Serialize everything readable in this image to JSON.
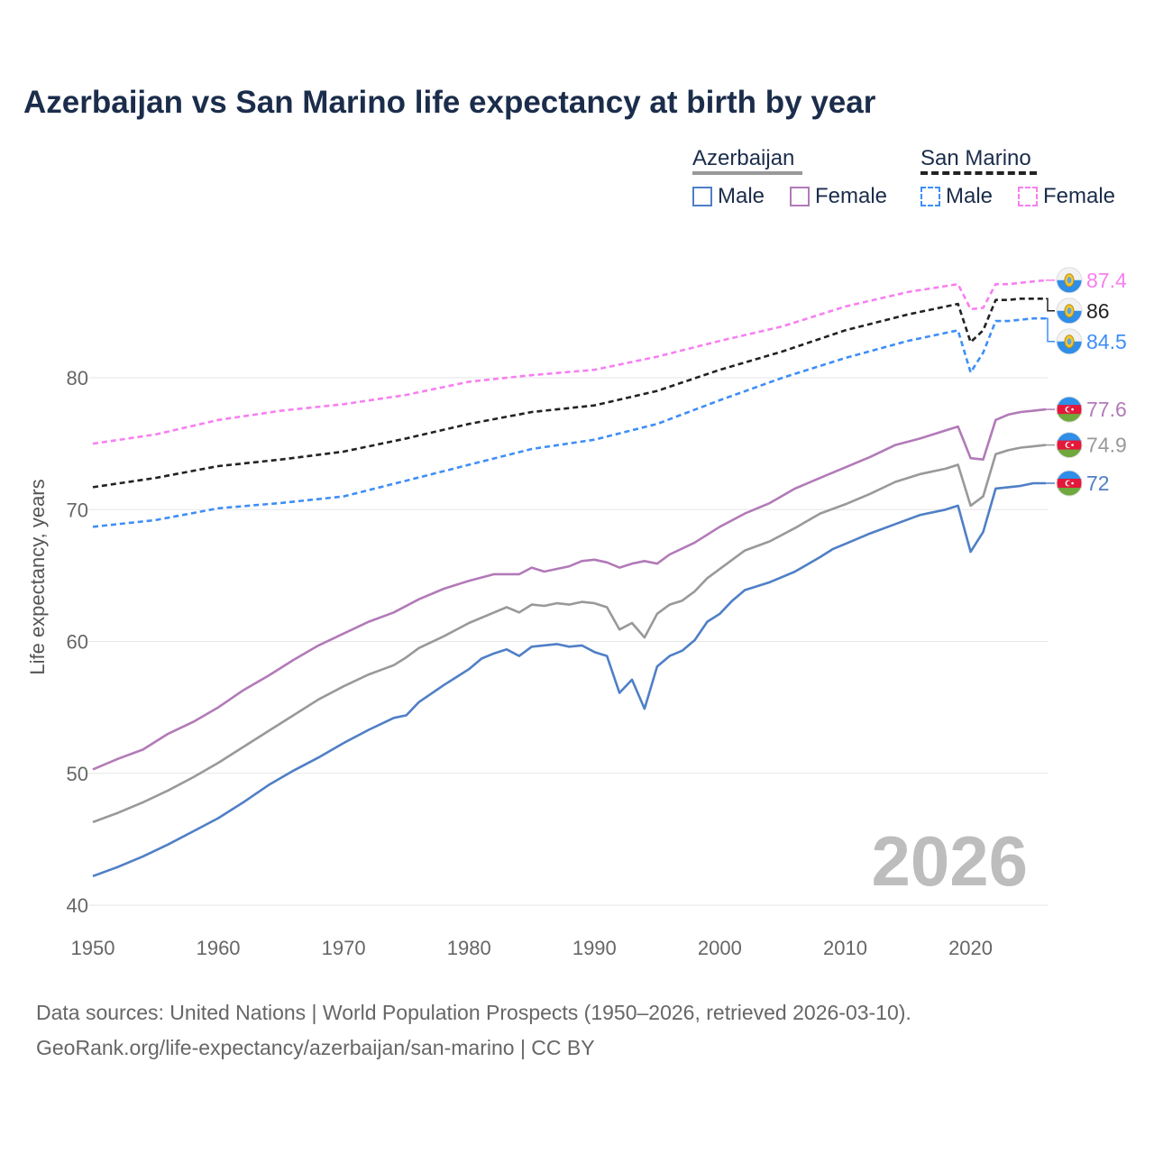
{
  "chart_data": {
    "type": "line",
    "title": "Azerbaijan vs San Marino life expectancy at birth by year",
    "xlabel": "",
    "ylabel": "Life expectancy, years",
    "xlim": [
      1950,
      2026
    ],
    "ylim": [
      40,
      90
    ],
    "x_ticks": [
      "1950",
      "1960",
      "1970",
      "1980",
      "1990",
      "2000",
      "2010",
      "2020"
    ],
    "y_ticks": [
      "40",
      "50",
      "60",
      "70",
      "80"
    ],
    "year_label": "2026",
    "legend": {
      "groups": [
        {
          "name": "Azerbaijan",
          "items": [
            "Male",
            "Female"
          ]
        },
        {
          "name": "San Marino",
          "items": [
            "Male",
            "Female"
          ]
        }
      ]
    },
    "series": [
      {
        "name": "San Marino Female",
        "country": "San Marino",
        "sex": "Female",
        "color": "#f77ff0",
        "dashed": true,
        "end_label": "87.4",
        "points": [
          [
            1950,
            75.0
          ],
          [
            1955,
            75.7
          ],
          [
            1960,
            76.8
          ],
          [
            1965,
            77.5
          ],
          [
            1970,
            78.0
          ],
          [
            1975,
            78.7
          ],
          [
            1980,
            79.7
          ],
          [
            1985,
            80.2
          ],
          [
            1990,
            80.6
          ],
          [
            1995,
            81.6
          ],
          [
            2000,
            82.8
          ],
          [
            2005,
            83.9
          ],
          [
            2010,
            85.4
          ],
          [
            2015,
            86.5
          ],
          [
            2019,
            87.1
          ],
          [
            2020,
            85.2
          ],
          [
            2021,
            85.3
          ],
          [
            2022,
            87.1
          ],
          [
            2023,
            87.1
          ],
          [
            2024,
            87.2
          ],
          [
            2025,
            87.3
          ],
          [
            2026,
            87.4
          ]
        ]
      },
      {
        "name": "San Marino Both",
        "country": "San Marino",
        "sex": "Both",
        "color": "#222222",
        "dashed": true,
        "end_label": "86",
        "points": [
          [
            1950,
            71.7
          ],
          [
            1955,
            72.4
          ],
          [
            1960,
            73.3
          ],
          [
            1965,
            73.8
          ],
          [
            1970,
            74.4
          ],
          [
            1975,
            75.4
          ],
          [
            1980,
            76.5
          ],
          [
            1985,
            77.4
          ],
          [
            1990,
            77.9
          ],
          [
            1995,
            79.0
          ],
          [
            2000,
            80.6
          ],
          [
            2005,
            82.0
          ],
          [
            2010,
            83.6
          ],
          [
            2015,
            84.8
          ],
          [
            2019,
            85.6
          ],
          [
            2020,
            82.7
          ],
          [
            2021,
            83.6
          ],
          [
            2022,
            85.9
          ],
          [
            2023,
            85.9
          ],
          [
            2024,
            86.0
          ],
          [
            2025,
            86.0
          ],
          [
            2026,
            86.0
          ]
        ]
      },
      {
        "name": "San Marino Male",
        "country": "San Marino",
        "sex": "Male",
        "color": "#3e8ef7",
        "dashed": true,
        "end_label": "84.5",
        "points": [
          [
            1950,
            68.7
          ],
          [
            1955,
            69.2
          ],
          [
            1960,
            70.1
          ],
          [
            1965,
            70.5
          ],
          [
            1970,
            71.0
          ],
          [
            1975,
            72.2
          ],
          [
            1980,
            73.4
          ],
          [
            1985,
            74.6
          ],
          [
            1990,
            75.3
          ],
          [
            1995,
            76.5
          ],
          [
            2000,
            78.3
          ],
          [
            2005,
            80.0
          ],
          [
            2010,
            81.5
          ],
          [
            2015,
            82.8
          ],
          [
            2019,
            83.6
          ],
          [
            2020,
            80.4
          ],
          [
            2021,
            81.9
          ],
          [
            2022,
            84.3
          ],
          [
            2023,
            84.3
          ],
          [
            2024,
            84.4
          ],
          [
            2025,
            84.5
          ],
          [
            2026,
            84.5
          ]
        ]
      },
      {
        "name": "Azerbaijan Female",
        "country": "Azerbaijan",
        "sex": "Female",
        "color": "#b27ab8",
        "dashed": false,
        "end_label": "77.6",
        "points": [
          [
            1950,
            50.3
          ],
          [
            1952,
            51.1
          ],
          [
            1954,
            51.8
          ],
          [
            1956,
            53.0
          ],
          [
            1958,
            53.9
          ],
          [
            1960,
            55.0
          ],
          [
            1962,
            56.3
          ],
          [
            1964,
            57.4
          ],
          [
            1966,
            58.6
          ],
          [
            1968,
            59.7
          ],
          [
            1970,
            60.6
          ],
          [
            1972,
            61.5
          ],
          [
            1974,
            62.2
          ],
          [
            1976,
            63.2
          ],
          [
            1978,
            64.0
          ],
          [
            1980,
            64.6
          ],
          [
            1982,
            65.1
          ],
          [
            1984,
            65.1
          ],
          [
            1985,
            65.6
          ],
          [
            1986,
            65.3
          ],
          [
            1988,
            65.7
          ],
          [
            1989,
            66.1
          ],
          [
            1990,
            66.2
          ],
          [
            1991,
            66.0
          ],
          [
            1992,
            65.6
          ],
          [
            1993,
            65.9
          ],
          [
            1994,
            66.1
          ],
          [
            1995,
            65.9
          ],
          [
            1996,
            66.6
          ],
          [
            1998,
            67.5
          ],
          [
            2000,
            68.7
          ],
          [
            2002,
            69.7
          ],
          [
            2004,
            70.5
          ],
          [
            2006,
            71.6
          ],
          [
            2008,
            72.4
          ],
          [
            2010,
            73.2
          ],
          [
            2012,
            74.0
          ],
          [
            2014,
            74.9
          ],
          [
            2016,
            75.4
          ],
          [
            2018,
            76.0
          ],
          [
            2019,
            76.3
          ],
          [
            2020,
            73.9
          ],
          [
            2021,
            73.8
          ],
          [
            2022,
            76.8
          ],
          [
            2023,
            77.2
          ],
          [
            2024,
            77.4
          ],
          [
            2025,
            77.5
          ],
          [
            2026,
            77.6
          ]
        ]
      },
      {
        "name": "Azerbaijan Both",
        "country": "Azerbaijan",
        "sex": "Both",
        "color": "#999999",
        "dashed": false,
        "end_label": "74.9",
        "points": [
          [
            1950,
            46.3
          ],
          [
            1952,
            47.0
          ],
          [
            1954,
            47.8
          ],
          [
            1956,
            48.7
          ],
          [
            1958,
            49.7
          ],
          [
            1960,
            50.8
          ],
          [
            1962,
            52.0
          ],
          [
            1964,
            53.2
          ],
          [
            1966,
            54.4
          ],
          [
            1968,
            55.6
          ],
          [
            1970,
            56.6
          ],
          [
            1972,
            57.5
          ],
          [
            1974,
            58.2
          ],
          [
            1975,
            58.8
          ],
          [
            1976,
            59.5
          ],
          [
            1978,
            60.4
          ],
          [
            1980,
            61.4
          ],
          [
            1982,
            62.2
          ],
          [
            1983,
            62.6
          ],
          [
            1984,
            62.2
          ],
          [
            1985,
            62.8
          ],
          [
            1986,
            62.7
          ],
          [
            1987,
            62.9
          ],
          [
            1988,
            62.8
          ],
          [
            1989,
            63.0
          ],
          [
            1990,
            62.9
          ],
          [
            1991,
            62.6
          ],
          [
            1992,
            60.9
          ],
          [
            1993,
            61.4
          ],
          [
            1994,
            60.3
          ],
          [
            1995,
            62.1
          ],
          [
            1996,
            62.8
          ],
          [
            1997,
            63.1
          ],
          [
            1998,
            63.8
          ],
          [
            1999,
            64.8
          ],
          [
            2000,
            65.5
          ],
          [
            2002,
            66.9
          ],
          [
            2004,
            67.6
          ],
          [
            2006,
            68.6
          ],
          [
            2008,
            69.7
          ],
          [
            2010,
            70.4
          ],
          [
            2012,
            71.2
          ],
          [
            2014,
            72.1
          ],
          [
            2016,
            72.7
          ],
          [
            2018,
            73.1
          ],
          [
            2019,
            73.4
          ],
          [
            2020,
            70.3
          ],
          [
            2021,
            71.0
          ],
          [
            2022,
            74.2
          ],
          [
            2023,
            74.5
          ],
          [
            2024,
            74.7
          ],
          [
            2025,
            74.8
          ],
          [
            2026,
            74.9
          ]
        ]
      },
      {
        "name": "Azerbaijan Male",
        "country": "Azerbaijan",
        "sex": "Male",
        "color": "#4f7fc6",
        "dashed": false,
        "end_label": "72",
        "points": [
          [
            1950,
            42.2
          ],
          [
            1952,
            42.9
          ],
          [
            1954,
            43.7
          ],
          [
            1956,
            44.6
          ],
          [
            1958,
            45.6
          ],
          [
            1960,
            46.6
          ],
          [
            1962,
            47.8
          ],
          [
            1964,
            49.1
          ],
          [
            1966,
            50.2
          ],
          [
            1968,
            51.2
          ],
          [
            1970,
            52.3
          ],
          [
            1972,
            53.3
          ],
          [
            1974,
            54.2
          ],
          [
            1975,
            54.4
          ],
          [
            1976,
            55.4
          ],
          [
            1978,
            56.7
          ],
          [
            1980,
            57.9
          ],
          [
            1981,
            58.7
          ],
          [
            1982,
            59.1
          ],
          [
            1983,
            59.4
          ],
          [
            1984,
            58.9
          ],
          [
            1985,
            59.6
          ],
          [
            1987,
            59.8
          ],
          [
            1988,
            59.6
          ],
          [
            1989,
            59.7
          ],
          [
            1990,
            59.2
          ],
          [
            1991,
            58.9
          ],
          [
            1992,
            56.1
          ],
          [
            1993,
            57.1
          ],
          [
            1994,
            54.9
          ],
          [
            1995,
            58.1
          ],
          [
            1996,
            58.9
          ],
          [
            1997,
            59.3
          ],
          [
            1998,
            60.1
          ],
          [
            1999,
            61.5
          ],
          [
            2000,
            62.1
          ],
          [
            2001,
            63.1
          ],
          [
            2002,
            63.9
          ],
          [
            2004,
            64.5
          ],
          [
            2006,
            65.3
          ],
          [
            2008,
            66.4
          ],
          [
            2009,
            67.0
          ],
          [
            2010,
            67.4
          ],
          [
            2012,
            68.2
          ],
          [
            2014,
            68.9
          ],
          [
            2016,
            69.6
          ],
          [
            2018,
            70.0
          ],
          [
            2019,
            70.3
          ],
          [
            2020,
            66.8
          ],
          [
            2021,
            68.3
          ],
          [
            2022,
            71.6
          ],
          [
            2024,
            71.8
          ],
          [
            2025,
            72.0
          ],
          [
            2026,
            72.0
          ]
        ]
      }
    ]
  },
  "footer": {
    "line1": "Data sources: United Nations | World Population Prospects (1950–2026, retrieved 2026-03-10).",
    "line2": "GeoRank.org/life-expectancy/azerbaijan/san-marino | CC BY"
  }
}
